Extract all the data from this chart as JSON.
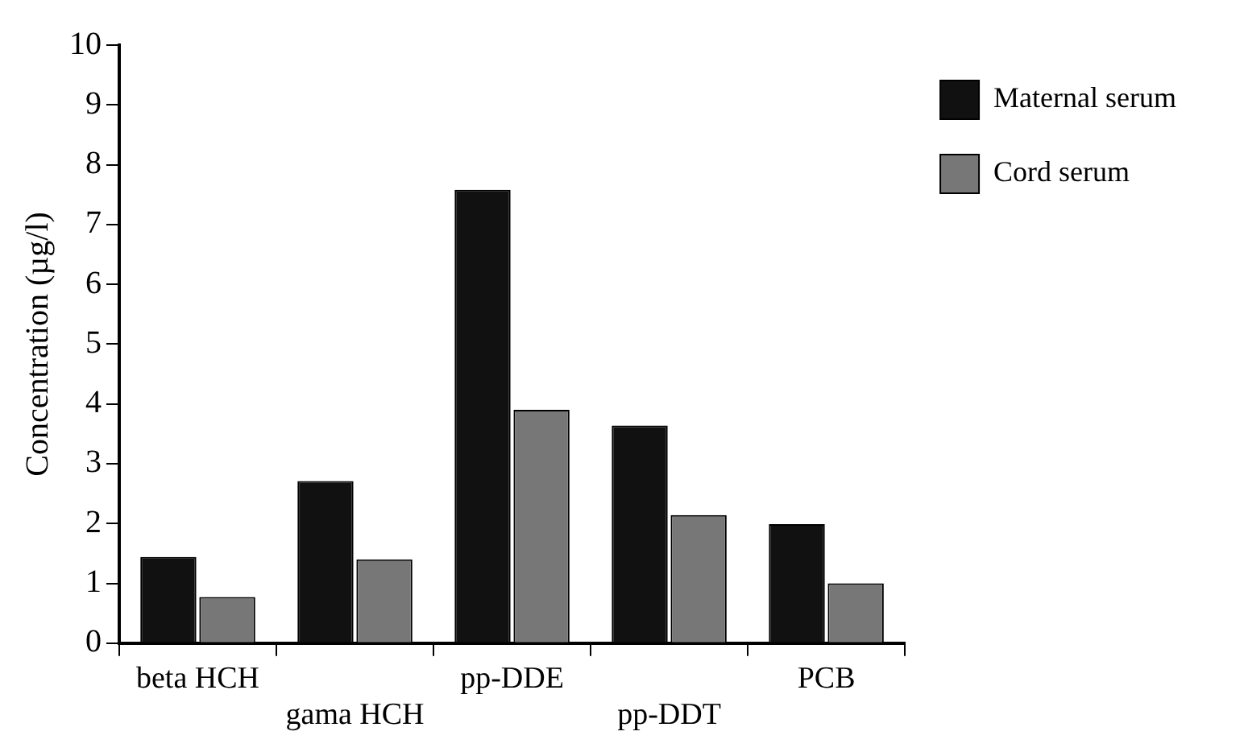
{
  "chart_data": {
    "type": "bar",
    "ylabel": "Concentration (µg/l)",
    "categories": [
      "beta HCH",
      "gama HCH",
      "pp-DDE",
      "pp-DDT",
      "PCB"
    ],
    "series": [
      {
        "name": "Maternal serum",
        "color": "#111111",
        "values": [
          1.44,
          2.71,
          7.58,
          3.64,
          1.99
        ]
      },
      {
        "name": "Cord serum",
        "color": "#777777",
        "values": [
          0.77,
          1.4,
          3.9,
          2.14,
          1.0
        ]
      }
    ],
    "ylim": [
      0,
      10
    ],
    "yticks": [
      0,
      1,
      2,
      3,
      4,
      5,
      6,
      7,
      8,
      9,
      10
    ],
    "grid": false,
    "legend": "top right"
  }
}
